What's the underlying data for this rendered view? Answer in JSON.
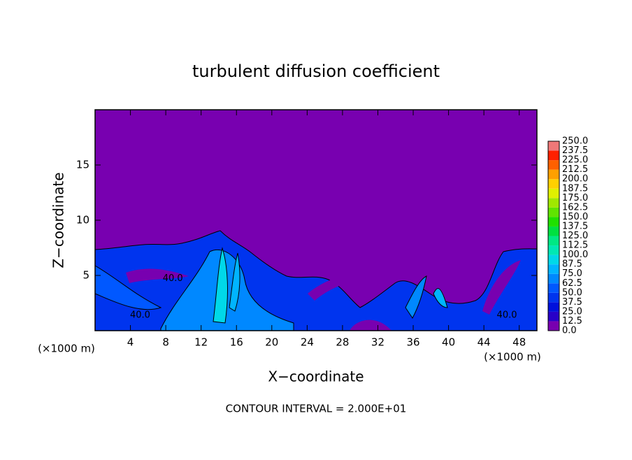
{
  "chart_data": {
    "type": "contour",
    "title": "turbulent diffusion coefficient",
    "x_label": "X−coordinate",
    "y_label": "Z−coordinate",
    "x_unit": "(×1000 m)",
    "footer": "CONTOUR INTERVAL = 2.000E+01",
    "xlim": [
      0,
      50
    ],
    "xticks": [
      4,
      8,
      12,
      16,
      20,
      24,
      28,
      32,
      36,
      40,
      44,
      48
    ],
    "ylim": [
      0,
      20
    ],
    "yticks": [
      5,
      10,
      15
    ],
    "colorbar": {
      "levels": [
        {
          "value": 0,
          "label": "0.0"
        },
        {
          "value": 12.5,
          "label": "12.5"
        },
        {
          "value": 25,
          "label": "25.0"
        },
        {
          "value": 37.5,
          "label": "37.5"
        },
        {
          "value": 50,
          "label": "50.0"
        },
        {
          "value": 62.5,
          "label": "62.5"
        },
        {
          "value": 75,
          "label": "75.0"
        },
        {
          "value": 87.5,
          "label": "87.5"
        },
        {
          "value": 100,
          "label": "100.0"
        },
        {
          "value": 112.5,
          "label": "112.5"
        },
        {
          "value": 125,
          "label": "125.0"
        },
        {
          "value": 137.5,
          "label": "137.5"
        },
        {
          "value": 150,
          "label": "150.0"
        },
        {
          "value": 162.5,
          "label": "162.5"
        },
        {
          "value": 175,
          "label": "175.0"
        },
        {
          "value": 187.5,
          "label": "187.5"
        },
        {
          "value": 200,
          "label": "200.0"
        },
        {
          "value": 212.5,
          "label": "212.5"
        },
        {
          "value": 225,
          "label": "225.0"
        },
        {
          "value": 237.5,
          "label": "237.5"
        },
        {
          "value": 250,
          "label": "250.0"
        }
      ],
      "colors": [
        "#7800b0",
        "#2800c8",
        "#0010dc",
        "#0034ee",
        "#0058ff",
        "#0088ff",
        "#00b4ff",
        "#00d8e8",
        "#00e8b4",
        "#00e884",
        "#00e040",
        "#20e000",
        "#60e400",
        "#a0e800",
        "#e0f000",
        "#ffd000",
        "#ffa000",
        "#ff6000",
        "#ff2000",
        "#f07878"
      ]
    },
    "contour_labels": [
      {
        "label": "40.0",
        "x": 8.8,
        "y": 4.7
      },
      {
        "label": "40.0",
        "x": 5.1,
        "y": 1.4
      },
      {
        "label": "40.0",
        "x": 46.6,
        "y": 1.4
      }
    ]
  }
}
